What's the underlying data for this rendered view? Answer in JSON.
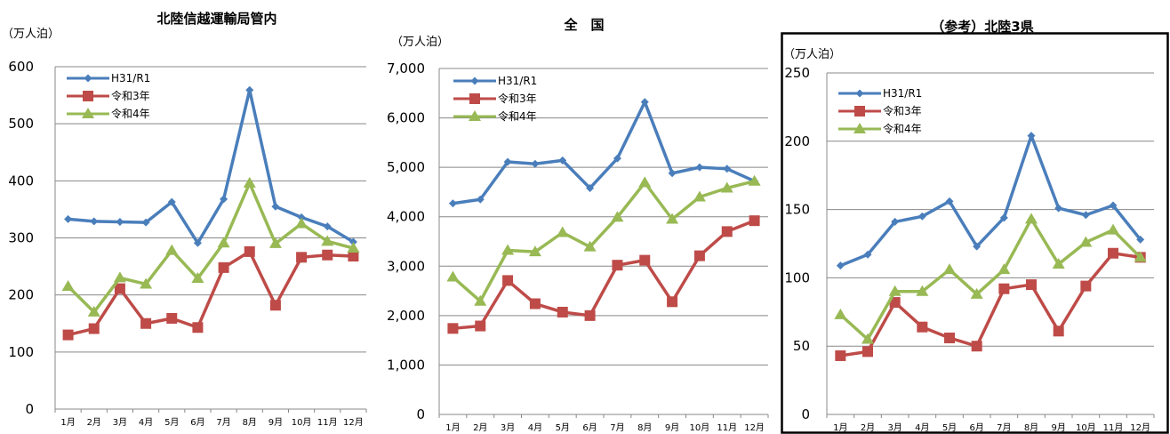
{
  "chart_data": [
    {
      "type": "line",
      "title": "北陸信越運輸局管内",
      "unit": "（万人泊）",
      "categories": [
        "1月",
        "2月",
        "3月",
        "4月",
        "5月",
        "6月",
        "7月",
        "8月",
        "9月",
        "10月",
        "11月",
        "12月"
      ],
      "ylim": [
        0,
        600
      ],
      "yticks": [
        "0",
        "100",
        "200",
        "300",
        "400",
        "500",
        "600"
      ],
      "grid": true,
      "legend": "top-left",
      "series": [
        {
          "name": "H31/R1",
          "color": "#4a7ebb",
          "marker": "diamond",
          "values": [
            333,
            329,
            328,
            327,
            363,
            291,
            368,
            559,
            355,
            336,
            320,
            293
          ]
        },
        {
          "name": "令和3年",
          "color": "#be4b48",
          "marker": "square",
          "values": [
            130,
            141,
            211,
            150,
            159,
            143,
            248,
            276,
            182,
            266,
            270,
            268
          ]
        },
        {
          "name": "令和4年",
          "color": "#98b954",
          "marker": "triangle",
          "values": [
            215,
            170,
            230,
            219,
            278,
            229,
            291,
            396,
            290,
            325,
            294,
            282
          ]
        }
      ]
    },
    {
      "type": "line",
      "title": "全　国",
      "unit": "（万人泊）",
      "categories": [
        "1月",
        "2月",
        "3月",
        "4月",
        "5月",
        "6月",
        "7月",
        "8月",
        "9月",
        "10月",
        "11月",
        "12月"
      ],
      "ylim": [
        0,
        7000
      ],
      "yticks": [
        "0",
        "1,000",
        "2,000",
        "3,000",
        "4,000",
        "5,000",
        "6,000",
        "7,000"
      ],
      "grid": true,
      "legend": "top-left",
      "series": [
        {
          "name": "H31/R1",
          "color": "#4a7ebb",
          "marker": "diamond",
          "values": [
            4270,
            4350,
            5110,
            5070,
            5140,
            4580,
            5180,
            6320,
            4880,
            5000,
            4970,
            4720
          ]
        },
        {
          "name": "令和3年",
          "color": "#be4b48",
          "marker": "square",
          "values": [
            1740,
            1790,
            2710,
            2240,
            2070,
            2000,
            3020,
            3120,
            2280,
            3210,
            3700,
            3920
          ]
        },
        {
          "name": "令和4年",
          "color": "#98b954",
          "marker": "triangle",
          "values": [
            2780,
            2290,
            3320,
            3290,
            3680,
            3390,
            3990,
            4690,
            3950,
            4400,
            4580,
            4720
          ]
        }
      ]
    },
    {
      "type": "line",
      "title": "（参考）北陸3県",
      "unit": "（万人泊）",
      "categories": [
        "1月",
        "2月",
        "3月",
        "4月",
        "5月",
        "6月",
        "7月",
        "8月",
        "9月",
        "10月",
        "11月",
        "12月"
      ],
      "ylim": [
        0,
        250
      ],
      "yticks": [
        "0",
        "50",
        "100",
        "150",
        "200",
        "250"
      ],
      "grid": true,
      "legend": "top-left",
      "series": [
        {
          "name": "H31/R1",
          "color": "#4a7ebb",
          "marker": "diamond",
          "values": [
            109,
            117,
            141,
            145,
            156,
            123,
            144,
            204,
            151,
            146,
            153,
            128
          ]
        },
        {
          "name": "令和3年",
          "color": "#be4b48",
          "marker": "square",
          "values": [
            43,
            46,
            82,
            64,
            56,
            50,
            92,
            95,
            61,
            94,
            118,
            115
          ]
        },
        {
          "name": "令和4年",
          "color": "#98b954",
          "marker": "triangle",
          "values": [
            73,
            55,
            90,
            90,
            106,
            88,
            106,
            143,
            110,
            126,
            135,
            115
          ]
        }
      ]
    }
  ]
}
